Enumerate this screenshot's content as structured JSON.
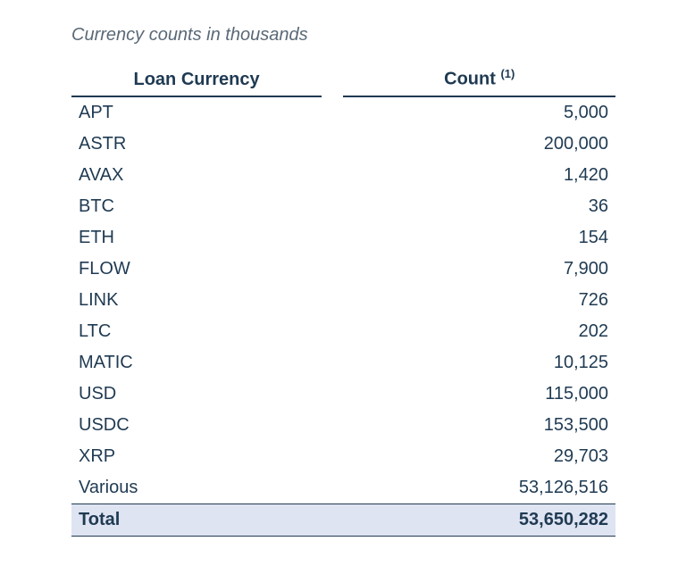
{
  "caption": "Currency counts in thousands",
  "columns": {
    "currency": "Loan Currency",
    "count_label": "Count",
    "count_sup": "(1)"
  },
  "rows": [
    {
      "currency": "APT",
      "count": "5,000"
    },
    {
      "currency": "ASTR",
      "count": "200,000"
    },
    {
      "currency": "AVAX",
      "count": "1,420"
    },
    {
      "currency": "BTC",
      "count": "36"
    },
    {
      "currency": "ETH",
      "count": "154"
    },
    {
      "currency": "FLOW",
      "count": "7,900"
    },
    {
      "currency": "LINK",
      "count": "726"
    },
    {
      "currency": "LTC",
      "count": "202"
    },
    {
      "currency": "MATIC",
      "count": "10,125"
    },
    {
      "currency": "USD",
      "count": "115,000"
    },
    {
      "currency": "USDC",
      "count": "153,500"
    },
    {
      "currency": "XRP",
      "count": "29,703"
    },
    {
      "currency": "Various",
      "count": "53,126,516"
    }
  ],
  "total": {
    "label": "Total",
    "count": "53,650,282"
  },
  "style": {
    "text_color": "#1f3a52",
    "caption_color": "#5a6977",
    "total_row_bg": "#dfe4f2",
    "border_color": "#1f3a52",
    "font_size_body": 20,
    "font_size_sup": 13,
    "background": "#ffffff"
  }
}
